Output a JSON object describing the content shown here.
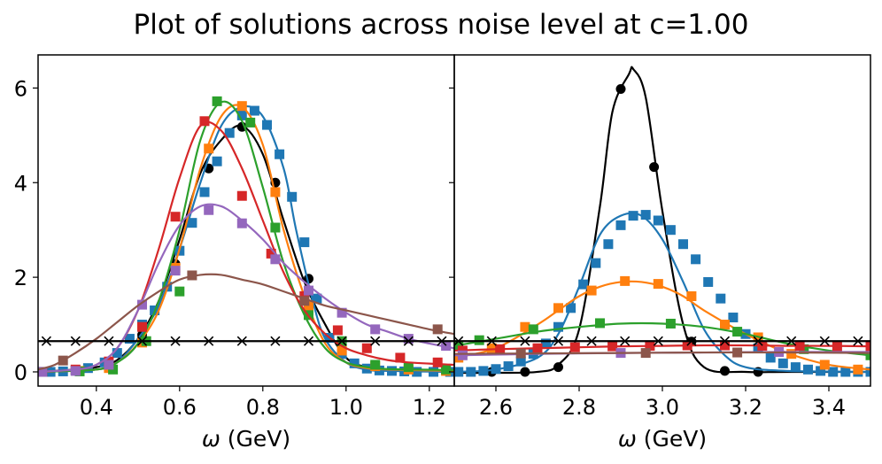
{
  "title": "Plot of solutions across noise level at c=1.00",
  "colors": {
    "black": "#000000",
    "blue": "#1f77b4",
    "orange": "#ff7f0e",
    "green": "#2ca02c",
    "red": "#d62728",
    "purple": "#9467bd",
    "brown": "#8c564b"
  },
  "chart_data": [
    {
      "type": "line",
      "panel": "left",
      "xlabel": "ω (GeV)",
      "ylabel": "",
      "xlim": [
        0.26,
        1.26
      ],
      "ylim": [
        -0.3,
        6.7
      ],
      "xticks": [
        0.4,
        0.6,
        0.8,
        1.0,
        1.2
      ],
      "xtick_labels": [
        "0.4",
        "0.6",
        "0.8",
        "1.0",
        "1.2"
      ],
      "yticks": [
        0,
        2,
        4,
        6
      ],
      "ytick_labels": [
        "0",
        "2",
        "4",
        "6"
      ],
      "series": [
        {
          "name": "black",
          "color": "black",
          "marker": "circle",
          "x": [
            0.26,
            0.35,
            0.4,
            0.45,
            0.5,
            0.55,
            0.6,
            0.65,
            0.7,
            0.75,
            0.8,
            0.85,
            0.9,
            0.95,
            1.0,
            1.05,
            1.1,
            1.15,
            1.2,
            1.26
          ],
          "y": [
            0.0,
            0.05,
            0.1,
            0.25,
            0.7,
            1.5,
            2.8,
            4.2,
            4.9,
            5.2,
            4.6,
            3.2,
            1.9,
            1.0,
            0.3,
            0.1,
            0.05,
            0.02,
            0.01,
            0.0
          ],
          "markers_x": [
            0.51,
            0.59,
            0.67,
            0.75,
            0.83,
            0.91
          ],
          "markers_y": [
            0.78,
            2.28,
            4.3,
            5.18,
            4.0,
            1.97
          ]
        },
        {
          "name": "blue",
          "color": "blue",
          "marker": "square",
          "x": [
            0.26,
            0.4,
            0.45,
            0.5,
            0.55,
            0.6,
            0.65,
            0.7,
            0.75,
            0.8,
            0.85,
            0.88,
            0.92,
            0.95,
            1.0,
            1.05,
            1.1,
            1.26
          ],
          "y": [
            0.0,
            0.05,
            0.2,
            0.7,
            1.4,
            2.6,
            4.0,
            5.2,
            5.6,
            5.4,
            4.3,
            3.0,
            1.5,
            0.7,
            0.2,
            0.05,
            0.02,
            0.0
          ],
          "markers_x": [
            0.26,
            0.29,
            0.32,
            0.35,
            0.38,
            0.42,
            0.45,
            0.48,
            0.51,
            0.54,
            0.57,
            0.6,
            0.63,
            0.66,
            0.69,
            0.72,
            0.75,
            0.78,
            0.81,
            0.84,
            0.87,
            0.9,
            0.93,
            0.96,
            0.99,
            1.02,
            1.05,
            1.08,
            1.11,
            1.14,
            1.17,
            1.21,
            1.25
          ],
          "markers_y": [
            0.0,
            0.0,
            0.01,
            0.03,
            0.08,
            0.2,
            0.4,
            0.7,
            1.0,
            1.3,
            1.8,
            2.56,
            3.15,
            3.8,
            4.45,
            5.05,
            5.42,
            5.52,
            5.22,
            4.6,
            3.7,
            2.74,
            1.55,
            0.72,
            0.38,
            0.18,
            0.07,
            0.03,
            0.02,
            0.01,
            0.0,
            0.0,
            0.0
          ]
        },
        {
          "name": "orange",
          "color": "orange",
          "marker": "square",
          "x": [
            0.26,
            0.4,
            0.45,
            0.5,
            0.55,
            0.6,
            0.65,
            0.7,
            0.75,
            0.8,
            0.85,
            0.9,
            0.95,
            1.0,
            1.05,
            1.1,
            1.26
          ],
          "y": [
            0.0,
            0.05,
            0.2,
            0.6,
            1.3,
            2.6,
            4.3,
            5.4,
            5.6,
            4.8,
            3.0,
            1.6,
            0.6,
            0.2,
            0.08,
            0.05,
            0.02
          ],
          "markers_x": [
            0.27,
            0.36,
            0.43,
            0.51,
            0.59,
            0.67,
            0.75,
            0.83,
            0.91,
            0.99,
            1.07,
            1.15,
            1.24
          ],
          "markers_y": [
            0.0,
            0.02,
            0.08,
            0.62,
            2.2,
            4.72,
            5.62,
            3.8,
            1.4,
            0.45,
            0.12,
            0.05,
            0.02
          ]
        },
        {
          "name": "green",
          "color": "green",
          "marker": "square",
          "x": [
            0.26,
            0.4,
            0.45,
            0.5,
            0.55,
            0.6,
            0.65,
            0.7,
            0.75,
            0.8,
            0.85,
            0.9,
            0.95,
            1.0,
            1.05,
            1.1,
            1.26
          ],
          "y": [
            0.0,
            0.05,
            0.2,
            0.6,
            1.5,
            3.0,
            4.9,
            5.7,
            5.3,
            3.9,
            2.3,
            1.2,
            0.5,
            0.2,
            0.1,
            0.06,
            0.04
          ],
          "markers_x": [
            0.27,
            0.36,
            0.44,
            0.52,
            0.6,
            0.69,
            0.77,
            0.83,
            0.91,
            0.99,
            1.07,
            1.15,
            1.24
          ],
          "markers_y": [
            0.0,
            0.01,
            0.05,
            0.65,
            1.7,
            5.72,
            5.27,
            3.05,
            1.2,
            0.65,
            0.15,
            0.1,
            0.05
          ]
        },
        {
          "name": "red",
          "color": "red",
          "marker": "square",
          "x": [
            0.26,
            0.35,
            0.4,
            0.45,
            0.5,
            0.55,
            0.6,
            0.65,
            0.7,
            0.75,
            0.8,
            0.85,
            0.9,
            0.95,
            1.0,
            1.05,
            1.1,
            1.15,
            1.26
          ],
          "y": [
            0.0,
            0.05,
            0.15,
            0.5,
            1.3,
            2.6,
            4.1,
            5.2,
            5.1,
            4.3,
            3.2,
            2.1,
            1.3,
            0.8,
            0.5,
            0.35,
            0.25,
            0.2,
            0.15
          ],
          "markers_x": [
            0.27,
            0.35,
            0.43,
            0.51,
            0.59,
            0.66,
            0.75,
            0.82,
            0.9,
            0.98,
            1.05,
            1.13,
            1.22
          ],
          "markers_y": [
            0.0,
            0.05,
            0.22,
            0.95,
            3.28,
            5.3,
            3.72,
            2.5,
            1.6,
            0.88,
            0.5,
            0.3,
            0.2
          ]
        },
        {
          "name": "purple",
          "color": "purple",
          "marker": "square",
          "x": [
            0.26,
            0.35,
            0.4,
            0.45,
            0.5,
            0.55,
            0.6,
            0.65,
            0.7,
            0.75,
            0.8,
            0.85,
            0.9,
            0.95,
            1.0,
            1.05,
            1.1,
            1.15,
            1.2,
            1.26
          ],
          "y": [
            0.0,
            0.05,
            0.15,
            0.5,
            1.3,
            2.3,
            3.1,
            3.5,
            3.5,
            3.2,
            2.8,
            2.3,
            1.9,
            1.55,
            1.25,
            1.0,
            0.85,
            0.7,
            0.6,
            0.5
          ],
          "markers_x": [
            0.27,
            0.35,
            0.43,
            0.51,
            0.59,
            0.67,
            0.75,
            0.83,
            0.91,
            0.99,
            1.07,
            1.15,
            1.24
          ],
          "markers_y": [
            0.0,
            0.02,
            0.15,
            1.42,
            2.14,
            3.42,
            3.14,
            2.38,
            1.72,
            1.25,
            0.9,
            0.7,
            0.55
          ]
        },
        {
          "name": "brown",
          "color": "brown",
          "marker": "square",
          "x": [
            0.26,
            0.3,
            0.35,
            0.4,
            0.45,
            0.5,
            0.55,
            0.6,
            0.65,
            0.7,
            0.75,
            0.8,
            0.85,
            0.9,
            0.95,
            1.0,
            1.05,
            1.1,
            1.15,
            1.2,
            1.26
          ],
          "y": [
            0.05,
            0.15,
            0.4,
            0.7,
            1.05,
            1.4,
            1.7,
            1.95,
            2.05,
            2.05,
            1.95,
            1.85,
            1.7,
            1.55,
            1.4,
            1.3,
            1.2,
            1.1,
            1.0,
            0.9,
            0.8
          ],
          "markers_x": [
            0.32,
            0.63,
            0.9,
            1.22
          ],
          "markers_y": [
            0.24,
            2.04,
            1.5,
            0.9
          ]
        },
        {
          "name": "default (x)",
          "color": "black",
          "marker": "x",
          "x": [
            0.26,
            1.26
          ],
          "y": [
            0.65,
            0.65
          ],
          "markers_x": [
            0.28,
            0.35,
            0.43,
            0.51,
            0.59,
            0.67,
            0.75,
            0.83,
            0.91,
            0.99,
            1.07,
            1.15,
            1.23
          ],
          "markers_y": [
            0.65,
            0.65,
            0.65,
            0.65,
            0.65,
            0.65,
            0.65,
            0.65,
            0.65,
            0.65,
            0.65,
            0.65,
            0.65
          ]
        }
      ]
    },
    {
      "type": "line",
      "panel": "right",
      "xlabel": "ω (GeV)",
      "ylabel": "",
      "xlim": [
        2.5,
        3.5
      ],
      "ylim": [
        -0.3,
        6.7
      ],
      "xticks": [
        2.6,
        2.8,
        3.0,
        3.2,
        3.4
      ],
      "xtick_labels": [
        "2.6",
        "2.8",
        "3.0",
        "3.2",
        "3.4"
      ],
      "yticks": [
        0,
        2,
        4,
        6
      ],
      "ytick_labels": [
        "",
        "",
        "",
        ""
      ],
      "series": [
        {
          "name": "black",
          "color": "black",
          "marker": "circle",
          "x": [
            2.5,
            2.6,
            2.7,
            2.75,
            2.8,
            2.85,
            2.88,
            2.92,
            2.93,
            2.96,
            3.0,
            3.05,
            3.1,
            3.2,
            3.3,
            3.5
          ],
          "y": [
            -0.02,
            -0.02,
            0.0,
            0.15,
            0.9,
            3.5,
            5.5,
            6.3,
            6.4,
            5.8,
            3.4,
            1.0,
            0.1,
            0.0,
            0.0,
            0.0
          ],
          "markers_x": [
            2.59,
            2.67,
            2.75,
            2.9,
            2.98,
            3.07,
            3.15,
            3.23
          ],
          "markers_y": [
            0.0,
            0.0,
            0.1,
            5.98,
            4.33,
            0.64,
            0.02,
            0.0
          ]
        },
        {
          "name": "blue",
          "color": "blue",
          "marker": "square",
          "x": [
            2.5,
            2.6,
            2.7,
            2.75,
            2.8,
            2.85,
            2.9,
            2.95,
            3.0,
            3.05,
            3.1,
            3.15,
            3.2,
            3.3,
            3.5
          ],
          "y": [
            0.0,
            0.05,
            0.3,
            0.8,
            1.8,
            2.9,
            3.3,
            3.3,
            2.8,
            1.9,
            0.9,
            0.35,
            0.1,
            0.02,
            0.0
          ],
          "markers_x": [
            2.51,
            2.54,
            2.57,
            2.6,
            2.63,
            2.66,
            2.69,
            2.72,
            2.75,
            2.78,
            2.81,
            2.84,
            2.87,
            2.9,
            2.93,
            2.96,
            2.99,
            3.02,
            3.05,
            3.08,
            3.11,
            3.14,
            3.17,
            3.2,
            3.23,
            3.26,
            3.29,
            3.32,
            3.35,
            3.38,
            3.41,
            3.44,
            3.47,
            3.5
          ],
          "markers_y": [
            0.0,
            0.0,
            0.02,
            0.06,
            0.12,
            0.22,
            0.38,
            0.6,
            0.95,
            1.35,
            1.85,
            2.3,
            2.7,
            3.1,
            3.3,
            3.32,
            3.2,
            3.0,
            2.7,
            2.38,
            1.9,
            1.55,
            1.15,
            0.8,
            0.5,
            0.3,
            0.18,
            0.1,
            0.05,
            0.02,
            0.0,
            0.0,
            0.0,
            0.0
          ]
        },
        {
          "name": "orange",
          "color": "orange",
          "marker": "square",
          "x": [
            2.5,
            2.6,
            2.7,
            2.75,
            2.8,
            2.85,
            2.9,
            2.95,
            3.0,
            3.05,
            3.1,
            3.2,
            3.3,
            3.4,
            3.5
          ],
          "y": [
            0.3,
            0.5,
            1.0,
            1.3,
            1.6,
            1.8,
            1.9,
            1.9,
            1.8,
            1.6,
            1.3,
            0.8,
            0.4,
            0.15,
            0.05
          ],
          "markers_x": [
            2.51,
            2.59,
            2.67,
            2.75,
            2.83,
            2.91,
            2.99,
            3.07,
            3.15,
            3.23,
            3.31,
            3.39,
            3.47
          ],
          "markers_y": [
            0.3,
            0.5,
            0.95,
            1.35,
            1.72,
            1.92,
            1.86,
            1.6,
            1.0,
            0.73,
            0.38,
            0.15,
            0.05
          ]
        },
        {
          "name": "green",
          "color": "green",
          "marker": "square",
          "x": [
            2.5,
            2.6,
            2.7,
            2.8,
            2.9,
            3.0,
            3.1,
            3.2,
            3.3,
            3.4,
            3.5
          ],
          "y": [
            0.55,
            0.7,
            0.85,
            0.95,
            1.02,
            1.02,
            0.95,
            0.8,
            0.6,
            0.45,
            0.35
          ],
          "markers_x": [
            2.51,
            2.56,
            2.69,
            2.85,
            3.02,
            3.18,
            3.34,
            3.5
          ],
          "markers_y": [
            0.55,
            0.67,
            0.9,
            1.03,
            1.02,
            0.85,
            0.48,
            0.35
          ]
        },
        {
          "name": "red",
          "color": "red",
          "marker": "square",
          "x": [
            2.5,
            2.6,
            2.7,
            2.8,
            2.9,
            3.0,
            3.1,
            3.2,
            3.3,
            3.4,
            3.5
          ],
          "y": [
            0.45,
            0.48,
            0.5,
            0.52,
            0.54,
            0.55,
            0.56,
            0.56,
            0.55,
            0.55,
            0.54
          ],
          "markers_x": [
            2.52,
            2.61,
            2.7,
            2.79,
            2.88,
            2.97,
            3.06,
            3.15,
            3.24,
            3.33,
            3.42,
            3.5
          ],
          "markers_y": [
            0.45,
            0.48,
            0.5,
            0.52,
            0.54,
            0.55,
            0.56,
            0.56,
            0.55,
            0.55,
            0.54,
            0.54
          ]
        },
        {
          "name": "purple",
          "color": "purple",
          "marker": "square",
          "x": [
            2.5,
            2.7,
            2.9,
            3.1,
            3.3,
            3.5
          ],
          "y": [
            0.35,
            0.38,
            0.4,
            0.41,
            0.42,
            0.42
          ],
          "markers_x": [
            2.52,
            2.9,
            3.28
          ],
          "markers_y": [
            0.35,
            0.4,
            0.42
          ]
        },
        {
          "name": "brown",
          "color": "brown",
          "marker": "square",
          "x": [
            2.5,
            2.7,
            2.9,
            3.1,
            3.3,
            3.5
          ],
          "y": [
            0.38,
            0.39,
            0.4,
            0.41,
            0.41,
            0.4
          ],
          "markers_x": [
            2.66,
            2.96,
            3.18
          ],
          "markers_y": [
            0.39,
            0.4,
            0.41
          ]
        },
        {
          "name": "default (x)",
          "color": "black",
          "marker": "x",
          "x": [
            2.5,
            3.5
          ],
          "y": [
            0.65,
            0.65
          ],
          "markers_x": [
            2.51,
            2.59,
            2.67,
            2.75,
            2.83,
            2.91,
            2.99,
            3.07,
            3.15,
            3.23,
            3.31,
            3.39,
            3.47
          ],
          "markers_y": [
            0.65,
            0.65,
            0.65,
            0.65,
            0.65,
            0.65,
            0.65,
            0.65,
            0.65,
            0.65,
            0.65,
            0.65,
            0.65
          ]
        }
      ]
    }
  ]
}
